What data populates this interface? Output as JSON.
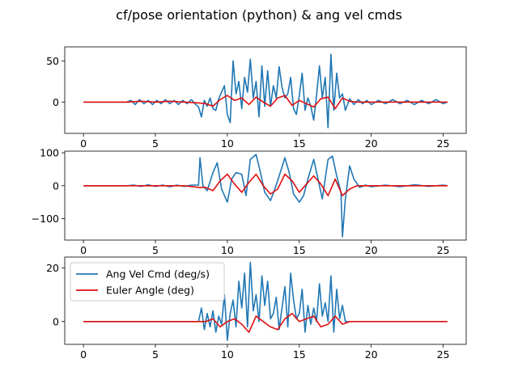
{
  "title": "cf/pose orientation (python) & ang vel cmds",
  "colors": {
    "ang_vel": "#1f77b4",
    "euler": "#e01010"
  },
  "chart_data": [
    {
      "type": "line",
      "xlim": [
        -1.3,
        26.6
      ],
      "ylim": [
        -38,
        67
      ],
      "xticks": [
        0,
        5,
        10,
        15,
        20,
        25
      ],
      "yticks": [
        0,
        50
      ],
      "grid": false,
      "series": [
        {
          "name": "Ang Vel Cmd (deg/s)",
          "color": "#1f77b4",
          "x": [
            0,
            3,
            3.3,
            3.6,
            3.9,
            4.2,
            4.5,
            4.8,
            5.1,
            5.4,
            5.7,
            6.0,
            6.3,
            6.6,
            6.9,
            7.2,
            7.5,
            7.8,
            8.0,
            8.2,
            8.4,
            8.6,
            8.8,
            9.0,
            9.2,
            9.4,
            9.6,
            9.8,
            10.0,
            10.2,
            10.4,
            10.6,
            10.8,
            11.0,
            11.2,
            11.4,
            11.6,
            11.8,
            12.0,
            12.2,
            12.4,
            12.6,
            12.8,
            13.0,
            13.2,
            13.4,
            13.6,
            13.8,
            14.0,
            14.2,
            14.4,
            14.6,
            14.8,
            15.0,
            15.2,
            15.4,
            15.6,
            15.8,
            16.0,
            16.2,
            16.4,
            16.6,
            16.8,
            17.0,
            17.2,
            17.4,
            17.6,
            17.8,
            18.0,
            18.2,
            18.5,
            18.8,
            19.1,
            19.4,
            19.7,
            20.0,
            20.5,
            21.0,
            21.5,
            22.0,
            22.5,
            23.0,
            23.5,
            24.0,
            24.5,
            25.0,
            25.3
          ],
          "y": [
            0,
            0,
            2,
            -3,
            3,
            -2,
            2,
            -3,
            2,
            -2,
            3,
            -2,
            2,
            -3,
            2,
            -2,
            3,
            -3,
            -6,
            -18,
            2,
            -5,
            5,
            -8,
            -10,
            4,
            12,
            20,
            -15,
            -25,
            50,
            10,
            25,
            -8,
            30,
            12,
            52,
            5,
            25,
            -18,
            44,
            -5,
            38,
            -5,
            20,
            5,
            43,
            18,
            5,
            10,
            30,
            -8,
            -15,
            8,
            35,
            -10,
            5,
            -5,
            -22,
            8,
            44,
            5,
            30,
            -31,
            58,
            -10,
            35,
            5,
            10,
            -10,
            4,
            -3,
            3,
            -2,
            2,
            -3,
            2,
            -2,
            3,
            -2,
            2,
            -3,
            2,
            -2,
            3,
            -2,
            0
          ]
        },
        {
          "name": "Euler Angle (deg)",
          "color": "#e01010",
          "x": [
            0,
            3,
            4,
            5,
            6,
            7,
            8,
            8.5,
            9,
            9.5,
            10,
            10.5,
            11,
            11.5,
            12,
            12.5,
            13,
            13.5,
            14,
            14.5,
            15,
            15.5,
            16,
            16.5,
            17,
            17.5,
            18,
            18.5,
            19,
            20,
            21,
            22,
            23,
            24,
            25.3
          ],
          "y": [
            0,
            0,
            1,
            0,
            1,
            0,
            -1,
            -2,
            -5,
            3,
            8,
            2,
            5,
            -3,
            6,
            0,
            -5,
            5,
            8,
            -4,
            2,
            -2,
            -6,
            4,
            6,
            -8,
            5,
            1,
            0,
            0,
            0,
            0,
            0,
            0,
            0
          ]
        }
      ]
    },
    {
      "type": "line",
      "xlim": [
        -1.3,
        26.6
      ],
      "ylim": [
        -165,
        105
      ],
      "xticks": [
        0,
        5,
        10,
        15,
        20,
        25
      ],
      "yticks": [
        -100,
        0,
        100
      ],
      "grid": false,
      "series": [
        {
          "name": "Ang Vel Cmd (deg/s)",
          "color": "#1f77b4",
          "x": [
            0,
            3,
            3.5,
            4,
            4.5,
            5,
            5.5,
            6,
            6.5,
            7,
            7.5,
            8,
            8.1,
            8.3,
            8.6,
            9,
            9.3,
            9.6,
            10,
            10.3,
            10.6,
            11,
            11.3,
            11.6,
            12,
            12.3,
            12.6,
            13,
            13.3,
            13.6,
            14,
            14.3,
            14.6,
            15,
            15.3,
            15.6,
            16,
            16.3,
            16.6,
            17,
            17.3,
            17.6,
            17.9,
            18.0,
            18.2,
            18.5,
            18.8,
            19.2,
            19.6,
            20,
            21,
            22,
            23,
            24,
            25,
            25.3
          ],
          "y": [
            0,
            0,
            2,
            -2,
            3,
            -2,
            2,
            -3,
            2,
            -2,
            2,
            2,
            85,
            0,
            -15,
            40,
            70,
            -10,
            -50,
            20,
            40,
            35,
            -30,
            80,
            95,
            40,
            -20,
            -45,
            -10,
            30,
            85,
            40,
            -25,
            -50,
            -30,
            20,
            80,
            20,
            -40,
            80,
            90,
            30,
            -20,
            -155,
            -40,
            60,
            20,
            -5,
            2,
            -3,
            2,
            -3,
            3,
            -2,
            2,
            0
          ]
        },
        {
          "name": "Euler Angle (deg)",
          "color": "#e01010",
          "x": [
            0,
            3,
            5,
            7,
            8,
            8.5,
            9,
            9.5,
            10,
            10.5,
            11,
            11.5,
            12,
            12.5,
            13,
            13.5,
            14,
            14.5,
            15,
            15.5,
            16,
            16.5,
            17,
            17.5,
            18,
            18.5,
            19,
            20,
            21,
            22,
            23,
            24,
            25.3
          ],
          "y": [
            0,
            0,
            0,
            0,
            -5,
            -5,
            -15,
            15,
            35,
            5,
            -20,
            10,
            35,
            0,
            -25,
            -10,
            35,
            15,
            -20,
            5,
            30,
            5,
            -30,
            20,
            -30,
            -10,
            0,
            0,
            0,
            0,
            0,
            0,
            0
          ]
        }
      ]
    },
    {
      "type": "line",
      "xlim": [
        -1.3,
        26.6
      ],
      "ylim": [
        -8.5,
        24
      ],
      "xticks": [
        0,
        5,
        10,
        15,
        20,
        25
      ],
      "yticks": [
        0,
        20
      ],
      "grid": false,
      "legend": "top-left",
      "series": [
        {
          "name": "Ang Vel Cmd (deg/s)",
          "color": "#1f77b4",
          "x": [
            0,
            8,
            8.2,
            8.4,
            8.6,
            8.8,
            9.0,
            9.2,
            9.4,
            9.6,
            9.8,
            10.0,
            10.2,
            10.4,
            10.6,
            10.8,
            11.0,
            11.2,
            11.4,
            11.6,
            11.8,
            12.0,
            12.2,
            12.4,
            12.6,
            12.8,
            13.0,
            13.2,
            13.4,
            13.6,
            13.8,
            14.0,
            14.2,
            14.4,
            14.6,
            14.8,
            15.0,
            15.2,
            15.4,
            15.6,
            15.8,
            16.0,
            16.2,
            16.4,
            16.6,
            16.8,
            17.0,
            17.2,
            17.4,
            17.6,
            17.8,
            18.0,
            18.2,
            18.4
          ],
          "y": [
            0,
            0,
            5,
            -3,
            3,
            -2,
            4,
            -4,
            2,
            -1,
            10,
            -7,
            3,
            8,
            -2,
            15,
            5,
            18,
            -2,
            22,
            4,
            10,
            0,
            17,
            6,
            15,
            1,
            3,
            9,
            -3,
            5,
            13,
            -2,
            18,
            8,
            1,
            3,
            12,
            -4,
            6,
            -1,
            5,
            0,
            14,
            2,
            7,
            0,
            17,
            -4,
            12,
            1,
            6,
            0,
            0
          ]
        },
        {
          "name": "Euler Angle (deg)",
          "color": "#e01010",
          "x": [
            0,
            8,
            8.5,
            9,
            9.5,
            10,
            10.5,
            11,
            11.5,
            12,
            12.5,
            13,
            13.5,
            14,
            14.5,
            15,
            15.5,
            16,
            16.5,
            17,
            17.5,
            18,
            18.5,
            20,
            22,
            24,
            25.3
          ],
          "y": [
            0,
            0,
            0,
            1,
            -2,
            0,
            1,
            -1,
            -4,
            2,
            0,
            -2,
            -3,
            1,
            3,
            0,
            1,
            2,
            -2,
            -1,
            2,
            -1,
            0,
            0,
            0,
            0,
            0
          ]
        }
      ]
    }
  ]
}
